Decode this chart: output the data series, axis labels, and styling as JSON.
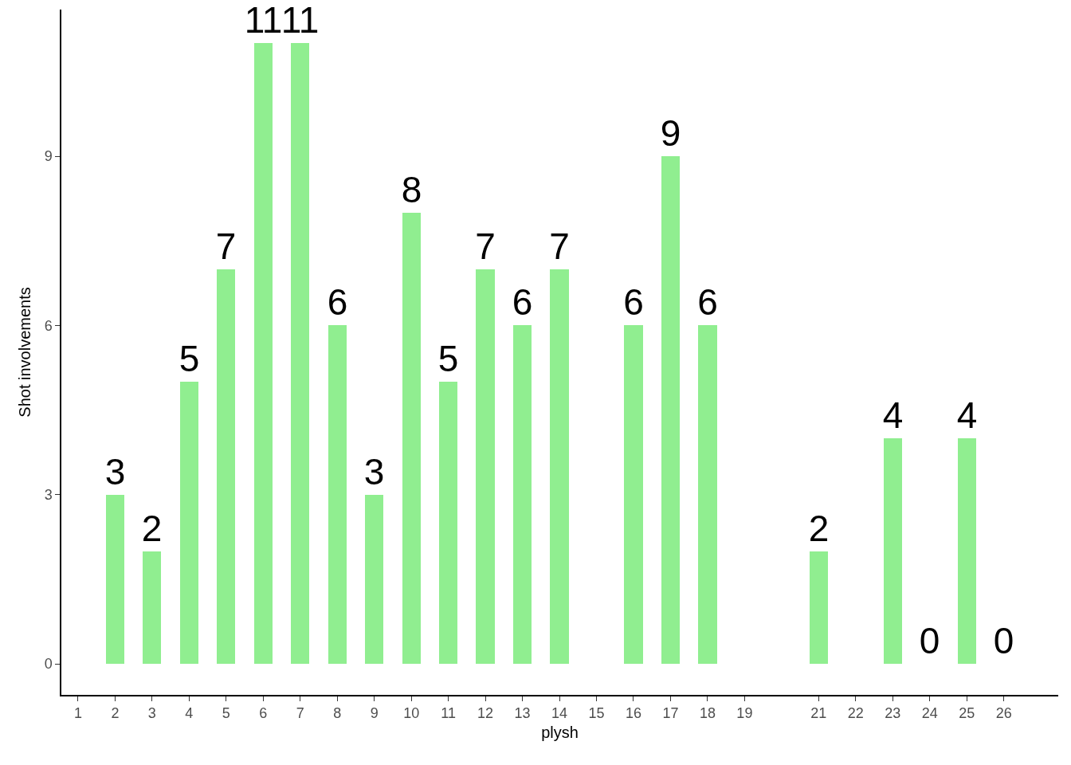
{
  "chart_data": {
    "type": "bar",
    "xlabel": "plysh",
    "ylabel": "Shot involvements",
    "x": [
      2,
      3,
      4,
      5,
      6,
      7,
      8,
      9,
      10,
      11,
      12,
      13,
      14,
      16,
      17,
      18,
      21,
      23,
      24,
      25,
      26
    ],
    "values": [
      3,
      2,
      5,
      7,
      11,
      11,
      6,
      3,
      8,
      5,
      7,
      6,
      7,
      6,
      9,
      6,
      2,
      4,
      0,
      4,
      0
    ],
    "color": "#90ee90",
    "data_labels": true,
    "xlim": [
      0.55,
      27.47
    ],
    "xticks": [
      1,
      2,
      3,
      4,
      5,
      6,
      7,
      8,
      9,
      10,
      11,
      12,
      13,
      14,
      15,
      16,
      17,
      18,
      19,
      21,
      22,
      23,
      24,
      25,
      26
    ],
    "ylim": [
      -0.55,
      11.6
    ],
    "yticks": [
      0,
      3,
      6,
      9
    ],
    "grid": false,
    "legend": false
  }
}
